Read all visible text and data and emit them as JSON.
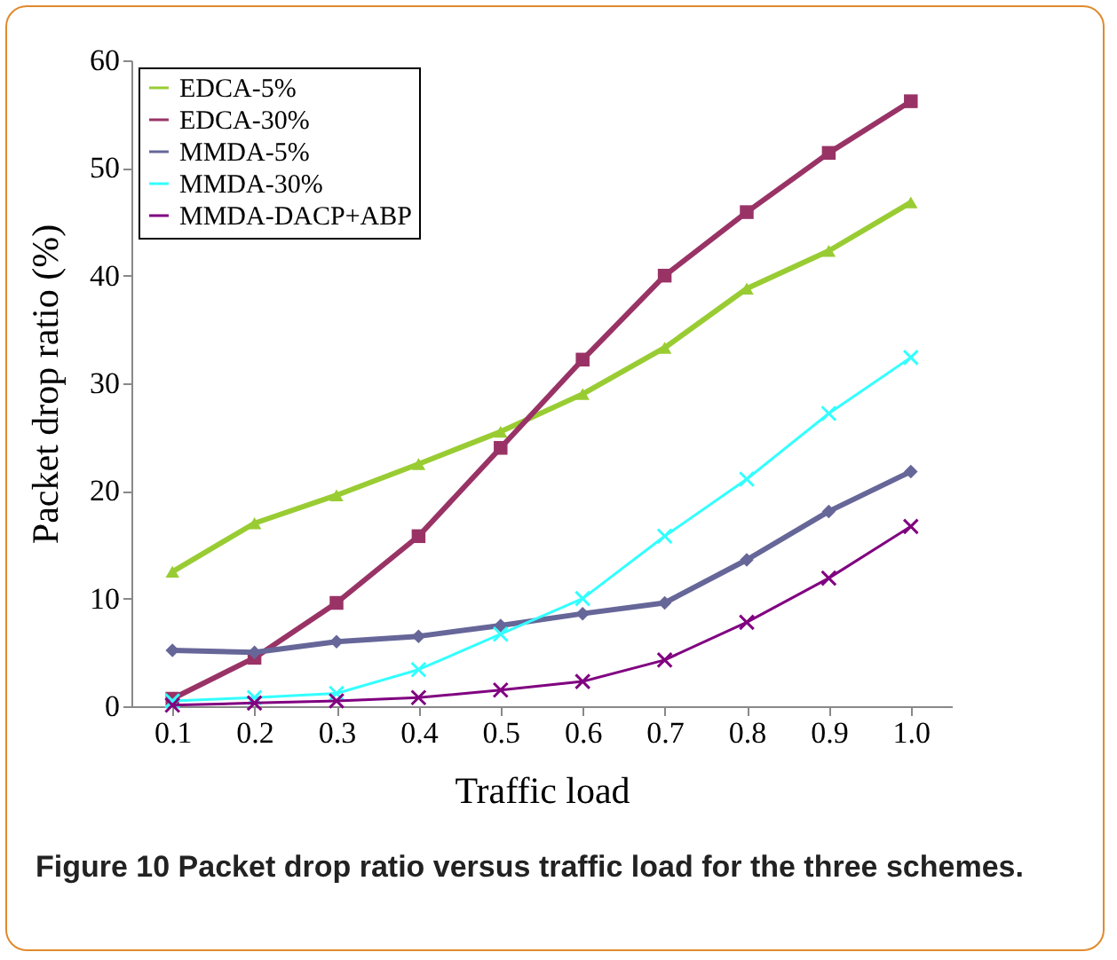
{
  "chart_data": {
    "type": "line",
    "xlabel": "Traffic load",
    "ylabel": "Packet drop ratio (%)",
    "categories": [
      "0.1",
      "0.2",
      "0.3",
      "0.4",
      "0.5",
      "0.6",
      "0.7",
      "0.8",
      "0.9",
      "1.0"
    ],
    "ylim": [
      0,
      60
    ],
    "yticks": [
      0,
      10,
      20,
      30,
      40,
      50,
      60
    ],
    "legend": "top left",
    "grid": false,
    "series": [
      {
        "name": "EDCA-5%",
        "color": "#99cc33",
        "marker": "triangle",
        "values": [
          12.5,
          17,
          19.6,
          22.5,
          25.5,
          29,
          33.3,
          38.8,
          42.3,
          46.8
        ]
      },
      {
        "name": "EDCA-30%",
        "color": "#993366",
        "marker": "square",
        "values": [
          0.7,
          4.5,
          9.6,
          15.8,
          24,
          32.2,
          40,
          45.9,
          51.4,
          56.2
        ]
      },
      {
        "name": "MMDA-5%",
        "color": "#666699",
        "marker": "diamond",
        "values": [
          5.2,
          5,
          6,
          6.5,
          7.5,
          8.6,
          9.6,
          13.6,
          18.1,
          21.8
        ]
      },
      {
        "name": "MMDA-30%",
        "color": "#33ffff",
        "marker": "cross",
        "values": [
          0.5,
          0.8,
          1.2,
          3.4,
          6.7,
          10,
          15.8,
          21.1,
          27.2,
          32.4
        ]
      },
      {
        "name": "MMDA-DACP+ABP",
        "color": "#800080",
        "marker": "cross",
        "values": [
          0.1,
          0.3,
          0.5,
          0.8,
          1.5,
          2.3,
          4.3,
          7.8,
          11.9,
          16.7
        ]
      }
    ],
    "annotations": [
      "Figure 10 Packet drop ratio versus traffic load for the three schemes."
    ]
  }
}
